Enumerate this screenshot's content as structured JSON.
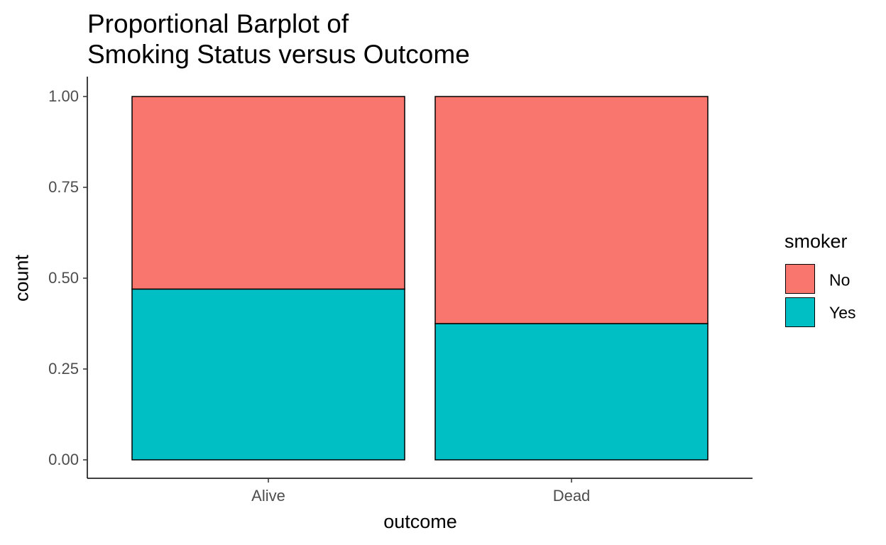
{
  "chart_data": {
    "type": "bar",
    "stacked": true,
    "position": "fill",
    "title": [
      "Proportional Barplot of",
      "Smoking Status versus Outcome"
    ],
    "xlabel": "outcome",
    "ylabel": "count",
    "categories": [
      "Alive",
      "Dead"
    ],
    "series": [
      {
        "name": "No",
        "color": "#F8766D",
        "values": [
          0.53,
          0.625
        ]
      },
      {
        "name": "Yes",
        "color": "#00BFC4",
        "values": [
          0.47,
          0.375
        ]
      }
    ],
    "ylim": [
      0,
      1
    ],
    "yticks": [
      "0.00",
      "0.25",
      "0.50",
      "0.75",
      "1.00"
    ],
    "ytick_values": [
      0,
      0.25,
      0.5,
      0.75,
      1.0
    ],
    "grid": false,
    "legend": {
      "title": "smoker",
      "placement": "right"
    }
  }
}
